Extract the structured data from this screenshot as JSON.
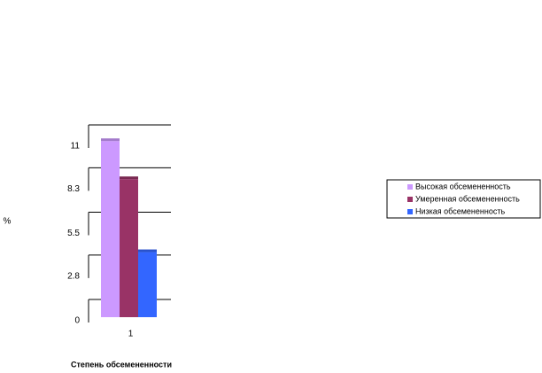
{
  "chart_data": {
    "type": "bar",
    "categories": [
      "1"
    ],
    "series": [
      {
        "name": "Высокая обсемененность",
        "color": "#cc99ff",
        "values": [
          11.1
        ]
      },
      {
        "name": "Умеренная обсемененность",
        "color": "#993366",
        "values": [
          8.7
        ]
      },
      {
        "name": "Низкая обсемененность",
        "color": "#3366ff",
        "values": [
          4.1
        ]
      }
    ],
    "ylim": [
      0,
      11
    ],
    "yticks": [
      0,
      2.8,
      5.5,
      8.3,
      11
    ],
    "xlabel": "Степень обсемененности",
    "ylabel": "%",
    "grid": true,
    "legend": "right"
  }
}
